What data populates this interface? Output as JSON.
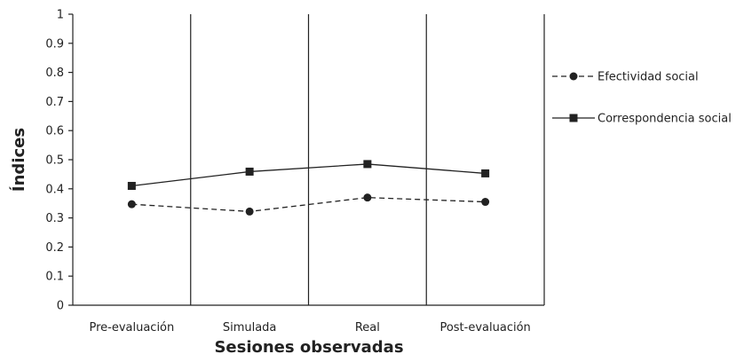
{
  "chart_data": {
    "type": "line",
    "categories": [
      "Pre-evaluación",
      "Simulada",
      "Real",
      "Post-evaluación"
    ],
    "series": [
      {
        "name": "Efectividad social",
        "values": [
          0.347,
          0.322,
          0.37,
          0.355
        ],
        "line_style": "dashed",
        "marker": "circle",
        "color": "#222222"
      },
      {
        "name": "Correspondencia social",
        "values": [
          0.41,
          0.459,
          0.485,
          0.453
        ],
        "line_style": "solid",
        "marker": "square",
        "color": "#222222"
      }
    ],
    "xlabel": "Sesiones observadas",
    "ylabel": "Índices",
    "ylim": [
      0,
      1
    ],
    "yticks": [
      "0",
      "0.1",
      "0.2",
      "0.3",
      "0.4",
      "0.5",
      "0.6",
      "0.7",
      "0.8",
      "0.9",
      "1"
    ],
    "phase_separators": true,
    "grid": false,
    "legend_position": "right"
  }
}
